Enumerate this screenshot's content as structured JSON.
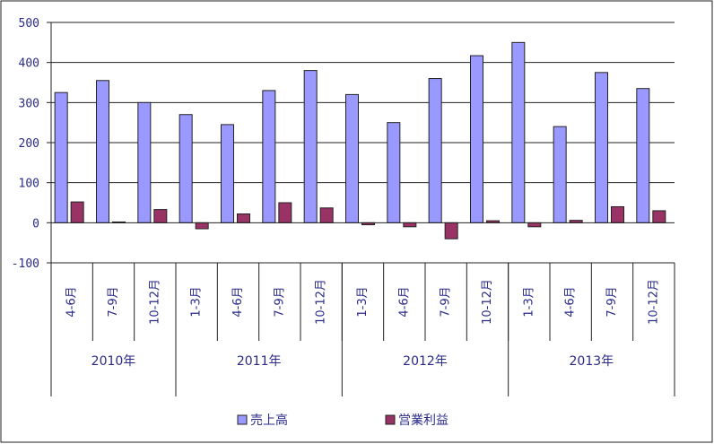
{
  "chart_data": {
    "type": "bar",
    "title": "",
    "xlabel": "",
    "ylabel": "",
    "ylim": [
      -100,
      500
    ],
    "yticks": [
      -100,
      0,
      100,
      200,
      300,
      400,
      500
    ],
    "grid": true,
    "legend_position": "bottom",
    "groups": [
      {
        "year": "2010年",
        "quarters": [
          "4-6月",
          "7-9月",
          "10-12月"
        ]
      },
      {
        "year": "2011年",
        "quarters": [
          "1-3月",
          "4-6月",
          "7-9月",
          "10-12月"
        ]
      },
      {
        "year": "2012年",
        "quarters": [
          "1-3月",
          "4-6月",
          "7-9月",
          "10-12月"
        ]
      },
      {
        "year": "2013年",
        "quarters": [
          "1-3月",
          "4-6月",
          "7-9月",
          "10-12月"
        ]
      }
    ],
    "categories": [
      "4-6月",
      "7-9月",
      "10-12月",
      "1-3月",
      "4-6月",
      "7-9月",
      "10-12月",
      "1-3月",
      "4-6月",
      "7-9月",
      "10-12月",
      "1-3月",
      "4-6月",
      "7-9月",
      "10-12月"
    ],
    "series": [
      {
        "name": "売上高",
        "color": "#9999ff",
        "values": [
          325,
          355,
          300,
          270,
          245,
          330,
          380,
          320,
          250,
          360,
          417,
          450,
          240,
          375,
          335
        ]
      },
      {
        "name": "営業利益",
        "color": "#993366",
        "values": [
          52,
          2,
          33,
          -15,
          22,
          50,
          37,
          -5,
          -10,
          -40,
          5,
          -10,
          6,
          40,
          30
        ]
      }
    ]
  }
}
